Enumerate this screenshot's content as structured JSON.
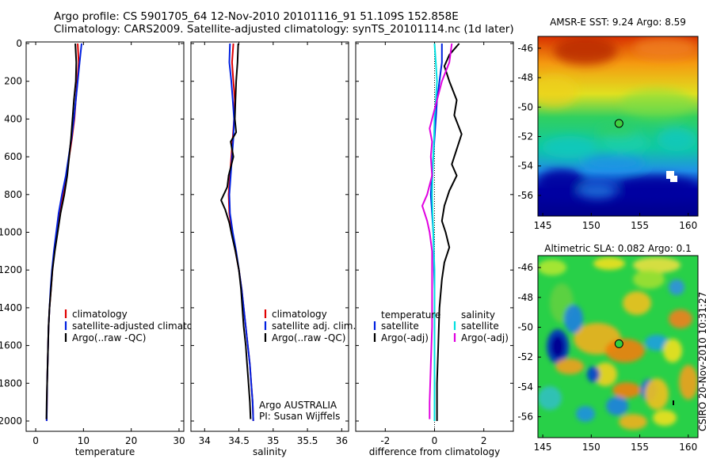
{
  "header": {
    "line1": "Argo profile: CS 5901705_64 12-Nov-2010 20101116_91 51.109S 152.858E",
    "line2": "Climatology: CARS2009. Satellite-adjusted climatology: synTS_20101114.nc (1d later)"
  },
  "side_text": "CSIRO 20-Nov-2010 10:31:27",
  "chart_data": [
    {
      "type": "line",
      "xlabel": "temperature",
      "xlim": [
        -2,
        31
      ],
      "xticks": [
        "0",
        "10",
        "20",
        "30"
      ],
      "xtick_values": [
        0,
        10,
        20,
        30
      ],
      "ylim": [
        0,
        2000
      ],
      "yticks": [
        "0",
        "200",
        "400",
        "600",
        "800",
        "1000",
        "1200",
        "1400",
        "1600",
        "1800",
        "2000"
      ],
      "legend": [
        "climatology",
        "satellite-adjusted climatology",
        "Argo(..raw -QC)"
      ],
      "series": [
        {
          "name": "climatology",
          "color": "#e00000",
          "points": [
            [
              8.8,
              0
            ],
            [
              9.0,
              100
            ],
            [
              8.7,
              200
            ],
            [
              8.4,
              300
            ],
            [
              8.1,
              400
            ],
            [
              7.6,
              500
            ],
            [
              7.0,
              600
            ],
            [
              6.4,
              700
            ],
            [
              5.8,
              800
            ],
            [
              5.0,
              900
            ],
            [
              4.4,
              1000
            ],
            [
              3.9,
              1100
            ],
            [
              3.5,
              1200
            ],
            [
              3.2,
              1300
            ],
            [
              2.9,
              1400
            ],
            [
              2.7,
              1500
            ],
            [
              2.6,
              1600
            ],
            [
              2.5,
              1700
            ],
            [
              2.4,
              1800
            ],
            [
              2.35,
              1900
            ],
            [
              2.3,
              2000
            ]
          ]
        },
        {
          "name": "satellite-adjusted climatology",
          "color": "#0020e0",
          "points": [
            [
              9.6,
              0
            ],
            [
              9.2,
              100
            ],
            [
              8.8,
              200
            ],
            [
              8.4,
              300
            ],
            [
              8.0,
              400
            ],
            [
              7.5,
              500
            ],
            [
              6.9,
              600
            ],
            [
              6.3,
              700
            ],
            [
              5.5,
              800
            ],
            [
              4.8,
              900
            ],
            [
              4.3,
              1000
            ],
            [
              3.8,
              1100
            ],
            [
              3.4,
              1200
            ],
            [
              3.1,
              1300
            ],
            [
              2.9,
              1400
            ],
            [
              2.7,
              1500
            ],
            [
              2.6,
              1600
            ],
            [
              2.5,
              1700
            ],
            [
              2.4,
              1800
            ],
            [
              2.35,
              1900
            ],
            [
              2.3,
              2000
            ]
          ]
        },
        {
          "name": "Argo(..raw -QC)",
          "color": "#000000",
          "points": [
            [
              8.3,
              0
            ],
            [
              8.5,
              100
            ],
            [
              8.4,
              200
            ],
            [
              8.0,
              300
            ],
            [
              7.7,
              400
            ],
            [
              7.4,
              500
            ],
            [
              7.0,
              600
            ],
            [
              6.6,
              700
            ],
            [
              6.0,
              800
            ],
            [
              5.2,
              900
            ],
            [
              4.6,
              1000
            ],
            [
              4.0,
              1100
            ],
            [
              3.5,
              1200
            ],
            [
              3.2,
              1300
            ],
            [
              2.9,
              1400
            ],
            [
              2.7,
              1500
            ],
            [
              2.6,
              1600
            ],
            [
              2.5,
              1700
            ],
            [
              2.4,
              1800
            ],
            [
              2.3,
              1900
            ],
            [
              2.25,
              1990
            ]
          ]
        }
      ]
    },
    {
      "type": "line",
      "xlabel": "salinity",
      "xlim": [
        33.8,
        36.1
      ],
      "xticks": [
        "34",
        "34.5",
        "35",
        "35.5",
        "36"
      ],
      "xtick_values": [
        34,
        34.5,
        35,
        35.5,
        36
      ],
      "ylim": [
        0,
        2000
      ],
      "legend": [
        "climatology",
        "satellite adj. clim.",
        "Argo(..raw -QC)"
      ],
      "note": [
        "Argo AUSTRALIA",
        "PI: Susan Wijffels"
      ],
      "series": [
        {
          "name": "climatology",
          "color": "#e00000",
          "points": [
            [
              34.42,
              0
            ],
            [
              34.4,
              100
            ],
            [
              34.42,
              200
            ],
            [
              34.44,
              300
            ],
            [
              34.43,
              400
            ],
            [
              34.41,
              500
            ],
            [
              34.39,
              600
            ],
            [
              34.37,
              700
            ],
            [
              34.35,
              800
            ],
            [
              34.36,
              900
            ],
            [
              34.4,
              1000
            ],
            [
              34.45,
              1100
            ],
            [
              34.5,
              1200
            ],
            [
              34.54,
              1300
            ],
            [
              34.57,
              1400
            ],
            [
              34.6,
              1500
            ],
            [
              34.63,
              1600
            ],
            [
              34.66,
              1700
            ],
            [
              34.68,
              1800
            ],
            [
              34.7,
              1900
            ],
            [
              34.71,
              2000
            ]
          ]
        },
        {
          "name": "satellite adj. clim.",
          "color": "#0020e0",
          "points": [
            [
              34.37,
              0
            ],
            [
              34.36,
              100
            ],
            [
              34.39,
              200
            ],
            [
              34.41,
              300
            ],
            [
              34.43,
              400
            ],
            [
              34.42,
              500
            ],
            [
              34.4,
              600
            ],
            [
              34.38,
              700
            ],
            [
              34.36,
              800
            ],
            [
              34.37,
              900
            ],
            [
              34.41,
              1000
            ],
            [
              34.46,
              1100
            ],
            [
              34.5,
              1200
            ],
            [
              34.54,
              1300
            ],
            [
              34.57,
              1400
            ],
            [
              34.6,
              1500
            ],
            [
              34.63,
              1600
            ],
            [
              34.66,
              1700
            ],
            [
              34.68,
              1800
            ],
            [
              34.7,
              1900
            ],
            [
              34.71,
              2000
            ]
          ]
        },
        {
          "name": "Argo(..raw -QC)",
          "color": "#000000",
          "points": [
            [
              34.49,
              0
            ],
            [
              34.48,
              100
            ],
            [
              34.46,
              200
            ],
            [
              34.45,
              300
            ],
            [
              34.44,
              400
            ],
            [
              34.46,
              470
            ],
            [
              34.38,
              520
            ],
            [
              34.42,
              600
            ],
            [
              34.35,
              700
            ],
            [
              34.33,
              760
            ],
            [
              34.24,
              830
            ],
            [
              34.3,
              880
            ],
            [
              34.36,
              950
            ],
            [
              34.4,
              1020
            ],
            [
              34.45,
              1100
            ],
            [
              34.5,
              1200
            ],
            [
              34.53,
              1300
            ],
            [
              34.55,
              1400
            ],
            [
              34.57,
              1500
            ],
            [
              34.6,
              1600
            ],
            [
              34.62,
              1700
            ],
            [
              34.64,
              1800
            ],
            [
              34.66,
              1900
            ],
            [
              34.67,
              1990
            ]
          ]
        }
      ]
    },
    {
      "type": "line",
      "xlabel": "difference from climatology",
      "xlim": [
        -3.2,
        3.2
      ],
      "xticks": [
        "-2",
        "0",
        "2"
      ],
      "xtick_values": [
        -2,
        0,
        2
      ],
      "ylim": [
        0,
        2000
      ],
      "legend_left": {
        "title": "temperature",
        "items": [
          "satellite",
          "Argo(-adj)"
        ]
      },
      "legend_right": {
        "title": "salinity",
        "items": [
          "satellite",
          "Argo(-adj)"
        ]
      },
      "series": [
        {
          "name": "temperature satellite",
          "color": "#0020e0",
          "points": [
            [
              0.3,
              0
            ],
            [
              0.3,
              100
            ],
            [
              0.2,
              200
            ],
            [
              0.1,
              300
            ],
            [
              0.05,
              400
            ],
            [
              0.0,
              500
            ],
            [
              -0.05,
              600
            ],
            [
              -0.1,
              700
            ],
            [
              -0.15,
              800
            ],
            [
              -0.1,
              900
            ],
            [
              -0.05,
              1000
            ],
            [
              -0.03,
              1100
            ],
            [
              -0.02,
              1200
            ],
            [
              0.0,
              1300
            ],
            [
              0.0,
              1400
            ],
            [
              0.0,
              1500
            ],
            [
              0.0,
              1600
            ],
            [
              0.0,
              1700
            ],
            [
              0.0,
              1800
            ],
            [
              0.0,
              1900
            ],
            [
              0.0,
              2000
            ]
          ]
        },
        {
          "name": "temperature Argo(-adj)",
          "color": "#000000",
          "points": [
            [
              1.0,
              0
            ],
            [
              0.6,
              60
            ],
            [
              0.4,
              120
            ],
            [
              0.6,
              200
            ],
            [
              0.9,
              300
            ],
            [
              0.8,
              380
            ],
            [
              1.1,
              480
            ],
            [
              0.9,
              560
            ],
            [
              0.7,
              640
            ],
            [
              0.9,
              700
            ],
            [
              0.6,
              780
            ],
            [
              0.4,
              860
            ],
            [
              0.3,
              940
            ],
            [
              0.45,
              1000
            ],
            [
              0.6,
              1080
            ],
            [
              0.4,
              1160
            ],
            [
              0.3,
              1250
            ],
            [
              0.2,
              1400
            ],
            [
              0.15,
              1600
            ],
            [
              0.1,
              1800
            ],
            [
              0.1,
              2000
            ]
          ]
        },
        {
          "name": "salinity satellite",
          "color": "#00e0e0",
          "points": [
            [
              0.0,
              0
            ],
            [
              0.05,
              100
            ],
            [
              0.1,
              200
            ],
            [
              0.05,
              300
            ],
            [
              0.0,
              400
            ],
            [
              -0.02,
              500
            ],
            [
              -0.05,
              600
            ],
            [
              -0.08,
              700
            ],
            [
              -0.1,
              800
            ],
            [
              -0.08,
              900
            ],
            [
              -0.05,
              1000
            ],
            [
              -0.03,
              1100
            ],
            [
              0.0,
              1200
            ],
            [
              0.0,
              1400
            ],
            [
              0.0,
              1600
            ],
            [
              0.0,
              1800
            ],
            [
              0.0,
              2000
            ]
          ]
        },
        {
          "name": "salinity Argo(-adj)",
          "color": "#e000e0",
          "points": [
            [
              0.7,
              0
            ],
            [
              0.6,
              100
            ],
            [
              0.3,
              200
            ],
            [
              0.1,
              300
            ],
            [
              -0.1,
              400
            ],
            [
              -0.2,
              450
            ],
            [
              -0.1,
              520
            ],
            [
              -0.15,
              600
            ],
            [
              -0.1,
              700
            ],
            [
              -0.3,
              800
            ],
            [
              -0.5,
              860
            ],
            [
              -0.3,
              940
            ],
            [
              -0.2,
              1000
            ],
            [
              -0.1,
              1100
            ],
            [
              -0.1,
              1300
            ],
            [
              -0.1,
              1500
            ],
            [
              -0.15,
              1700
            ],
            [
              -0.2,
              1900
            ],
            [
              -0.2,
              1990
            ]
          ]
        }
      ]
    },
    {
      "type": "heatmap",
      "title": "AMSR-E SST: 9.24  Argo: 8.59",
      "xlim": [
        144.5,
        161
      ],
      "xticks": [
        "145",
        "150",
        "155",
        "160"
      ],
      "xtick_values": [
        145,
        150,
        155,
        160
      ],
      "ylim": [
        -57.4,
        -45.2
      ],
      "yticks": [
        "-46",
        "-48",
        "-50",
        "-52",
        "-54",
        "-56"
      ],
      "ytick_values": [
        -46,
        -48,
        -50,
        -52,
        -54,
        -56
      ],
      "marker": {
        "lon": 152.858,
        "lat": -51.109
      }
    },
    {
      "type": "heatmap",
      "title": "Altimetric SLA: 0.082  Argo: 0.1",
      "xlim": [
        144.5,
        161
      ],
      "xticks": [
        "145",
        "150",
        "155",
        "160"
      ],
      "xtick_values": [
        145,
        150,
        155,
        160
      ],
      "ylim": [
        -57.4,
        -45.2
      ],
      "yticks": [
        "-46",
        "-48",
        "-50",
        "-52",
        "-54",
        "-56"
      ],
      "ytick_values": [
        -46,
        -48,
        -50,
        -52,
        -54,
        -56
      ],
      "marker": {
        "lon": 152.858,
        "lat": -51.109
      }
    }
  ]
}
